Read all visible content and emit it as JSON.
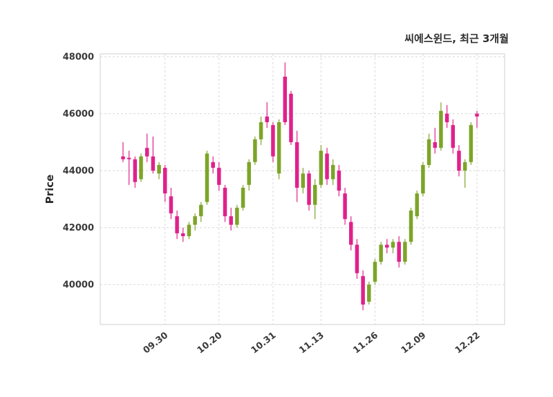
{
  "chart_data": {
    "type": "candlestick",
    "title": "씨에스윈드, 최근 3개월",
    "ylabel": "Price",
    "ylim": [
      38600,
      48100
    ],
    "yticks": [
      40000,
      42000,
      44000,
      46000,
      48000
    ],
    "xticks": [
      {
        "index": 7,
        "label": "09.30"
      },
      {
        "index": 16,
        "label": "10.20"
      },
      {
        "index": 25,
        "label": "10.31"
      },
      {
        "index": 33,
        "label": "11.13"
      },
      {
        "index": 42,
        "label": "11.26"
      },
      {
        "index": 50,
        "label": "12.09"
      },
      {
        "index": 59,
        "label": "12.22"
      }
    ],
    "colors": {
      "up": "#7da428",
      "down": "#e0218a"
    },
    "candles": [
      [
        44500,
        45000,
        44300,
        44400
      ],
      [
        44450,
        44700,
        43500,
        44400
      ],
      [
        44400,
        44500,
        43400,
        43600
      ],
      [
        43700,
        44600,
        43600,
        44500
      ],
      [
        44800,
        45300,
        44300,
        44500
      ],
      [
        44500,
        45200,
        43900,
        44000
      ],
      [
        43900,
        44300,
        43700,
        44200
      ],
      [
        44100,
        44200,
        42900,
        43200
      ],
      [
        43100,
        43400,
        42300,
        42500
      ],
      [
        42400,
        42600,
        41600,
        41800
      ],
      [
        41800,
        42000,
        41500,
        41700
      ],
      [
        41700,
        42200,
        41600,
        42100
      ],
      [
        42100,
        42500,
        41900,
        42400
      ],
      [
        42400,
        42900,
        42200,
        42800
      ],
      [
        42900,
        44700,
        42800,
        44600
      ],
      [
        44300,
        44500,
        43900,
        44100
      ],
      [
        44100,
        44300,
        43300,
        43500
      ],
      [
        43400,
        43500,
        42200,
        42400
      ],
      [
        42400,
        42700,
        41900,
        42100
      ],
      [
        42100,
        42800,
        42000,
        42700
      ],
      [
        42700,
        43500,
        42600,
        43400
      ],
      [
        43500,
        44400,
        43300,
        44300
      ],
      [
        44300,
        45200,
        44200,
        45100
      ],
      [
        45100,
        45900,
        44900,
        45700
      ],
      [
        45900,
        46400,
        45500,
        45700
      ],
      [
        45600,
        45700,
        44300,
        44500
      ],
      [
        43900,
        45800,
        43700,
        45700
      ],
      [
        47300,
        47800,
        45600,
        45700
      ],
      [
        46700,
        46800,
        44900,
        45000
      ],
      [
        45000,
        45400,
        42900,
        43400
      ],
      [
        43400,
        44100,
        43200,
        43900
      ],
      [
        43900,
        44000,
        42600,
        42800
      ],
      [
        42800,
        43700,
        42300,
        43500
      ],
      [
        43500,
        44900,
        43400,
        44700
      ],
      [
        44600,
        44800,
        43500,
        43700
      ],
      [
        43700,
        44400,
        43500,
        44200
      ],
      [
        44000,
        44200,
        43100,
        43300
      ],
      [
        43200,
        43400,
        42100,
        42300
      ],
      [
        42200,
        42400,
        41200,
        41400
      ],
      [
        41400,
        41600,
        40200,
        40400
      ],
      [
        40300,
        40500,
        39100,
        39300
      ],
      [
        39400,
        40100,
        39300,
        40000
      ],
      [
        40100,
        40900,
        40000,
        40800
      ],
      [
        40800,
        41500,
        40700,
        41400
      ],
      [
        41400,
        41600,
        41100,
        41300
      ],
      [
        41300,
        41600,
        41100,
        41500
      ],
      [
        41500,
        41700,
        40600,
        40800
      ],
      [
        40800,
        41600,
        40700,
        41500
      ],
      [
        41500,
        42700,
        41400,
        42600
      ],
      [
        42400,
        43300,
        42300,
        43200
      ],
      [
        43200,
        44300,
        43100,
        44200
      ],
      [
        44200,
        45300,
        44100,
        45100
      ],
      [
        45000,
        45500,
        44600,
        44800
      ],
      [
        44800,
        46400,
        44700,
        46100
      ],
      [
        46000,
        46300,
        45500,
        45700
      ],
      [
        45600,
        45800,
        44600,
        44800
      ],
      [
        44700,
        44900,
        43800,
        44000
      ],
      [
        44000,
        44400,
        43400,
        44300
      ],
      [
        44300,
        45700,
        44200,
        45600
      ],
      [
        46000,
        46100,
        45500,
        45900
      ]
    ]
  }
}
